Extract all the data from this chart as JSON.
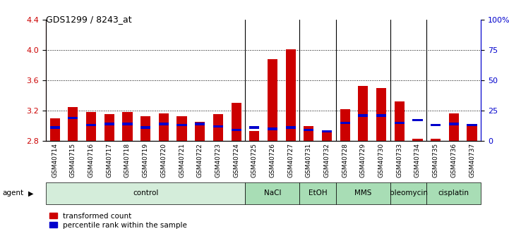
{
  "title": "GDS1299 / 8243_at",
  "samples": [
    "GSM40714",
    "GSM40715",
    "GSM40716",
    "GSM40717",
    "GSM40718",
    "GSM40719",
    "GSM40720",
    "GSM40721",
    "GSM40722",
    "GSM40723",
    "GSM40724",
    "GSM40725",
    "GSM40726",
    "GSM40727",
    "GSM40731",
    "GSM40732",
    "GSM40728",
    "GSM40729",
    "GSM40730",
    "GSM40733",
    "GSM40734",
    "GSM40735",
    "GSM40736",
    "GSM40737"
  ],
  "red_values": [
    3.1,
    3.25,
    3.18,
    3.15,
    3.18,
    3.13,
    3.16,
    3.13,
    3.05,
    3.15,
    3.3,
    2.93,
    3.88,
    4.01,
    3.0,
    2.93,
    3.22,
    3.52,
    3.5,
    3.32,
    2.83,
    2.83,
    3.16,
    3.0
  ],
  "blue_percentiles": [
    10,
    18,
    12,
    13,
    13,
    10,
    13,
    12,
    13,
    11,
    8,
    10,
    9,
    10,
    8,
    7,
    14,
    20,
    20,
    14,
    16,
    12,
    13,
    12
  ],
  "ylim_left": [
    2.8,
    4.4
  ],
  "ylim_right": [
    0,
    100
  ],
  "yticks_left": [
    2.8,
    3.2,
    3.6,
    4.0,
    4.4
  ],
  "yticks_right": [
    0,
    25,
    50,
    75,
    100
  ],
  "ytick_right_labels": [
    "0",
    "25",
    "50",
    "75",
    "100%"
  ],
  "agent_groups": [
    {
      "label": "control",
      "start": 0,
      "end": 10,
      "color": "#d4edda"
    },
    {
      "label": "NaCl",
      "start": 11,
      "end": 13,
      "color": "#a8ddb5"
    },
    {
      "label": "EtOH",
      "start": 14,
      "end": 15,
      "color": "#a8ddb5"
    },
    {
      "label": "MMS",
      "start": 16,
      "end": 18,
      "color": "#a8ddb5"
    },
    {
      "label": "bleomycin",
      "start": 19,
      "end": 20,
      "color": "#a8ddb5"
    },
    {
      "label": "cisplatin",
      "start": 21,
      "end": 23,
      "color": "#a8ddb5"
    }
  ],
  "bar_width": 0.55,
  "red_color": "#cc0000",
  "blue_color": "#0000cc",
  "axis_color_left": "#cc0000",
  "axis_color_right": "#0000cc",
  "grid_dotted_vals": [
    3.2,
    3.6,
    4.0
  ],
  "group_boundaries": [
    10.5,
    13.5,
    15.5,
    18.5,
    20.5
  ]
}
